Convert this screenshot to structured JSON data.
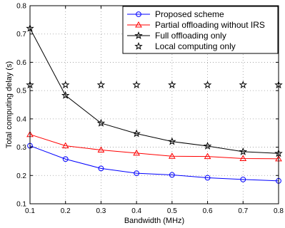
{
  "chart_data": {
    "type": "line",
    "title": "",
    "xlabel": "Bandwidth (MHz)",
    "ylabel": "Total computing delay (s)",
    "xlim": [
      0.1,
      0.8
    ],
    "ylim": [
      0.1,
      0.8
    ],
    "grid": true,
    "legend_position": "top-right",
    "x": [
      0.1,
      0.2,
      0.3,
      0.4,
      0.5,
      0.6,
      0.7,
      0.8
    ],
    "x_tick_labels": [
      "0.1",
      "0.2",
      "0.3",
      "0.4",
      "0.5",
      "0.6",
      "0.7",
      "0.8"
    ],
    "y_ticks": [
      0.1,
      0.2,
      0.3,
      0.4,
      0.5,
      0.6,
      0.7,
      0.8
    ],
    "y_tick_labels": [
      "0.1",
      "0.2",
      "0.3",
      "0.4",
      "0.5",
      "0.6",
      "0.7",
      "0.8"
    ],
    "series": [
      {
        "name": "Proposed scheme",
        "color": "#0000ff",
        "marker": "circle",
        "line": true,
        "values": [
          0.305,
          0.258,
          0.225,
          0.208,
          0.202,
          0.192,
          0.186,
          0.181
        ]
      },
      {
        "name": "Partial offloading without IRS",
        "color": "#ff0000",
        "marker": "triangle",
        "line": true,
        "values": [
          0.345,
          0.305,
          0.29,
          0.279,
          0.268,
          0.267,
          0.26,
          0.259
        ]
      },
      {
        "name": "Full offloading only",
        "color": "#000000",
        "marker": "star",
        "line": true,
        "values": [
          0.72,
          0.483,
          0.385,
          0.348,
          0.32,
          0.304,
          0.284,
          0.278
        ]
      },
      {
        "name": "Local computing only",
        "color": "#000000",
        "marker": "star",
        "line": false,
        "values": [
          0.52,
          0.52,
          0.52,
          0.52,
          0.52,
          0.52,
          0.52,
          0.52
        ]
      }
    ]
  }
}
